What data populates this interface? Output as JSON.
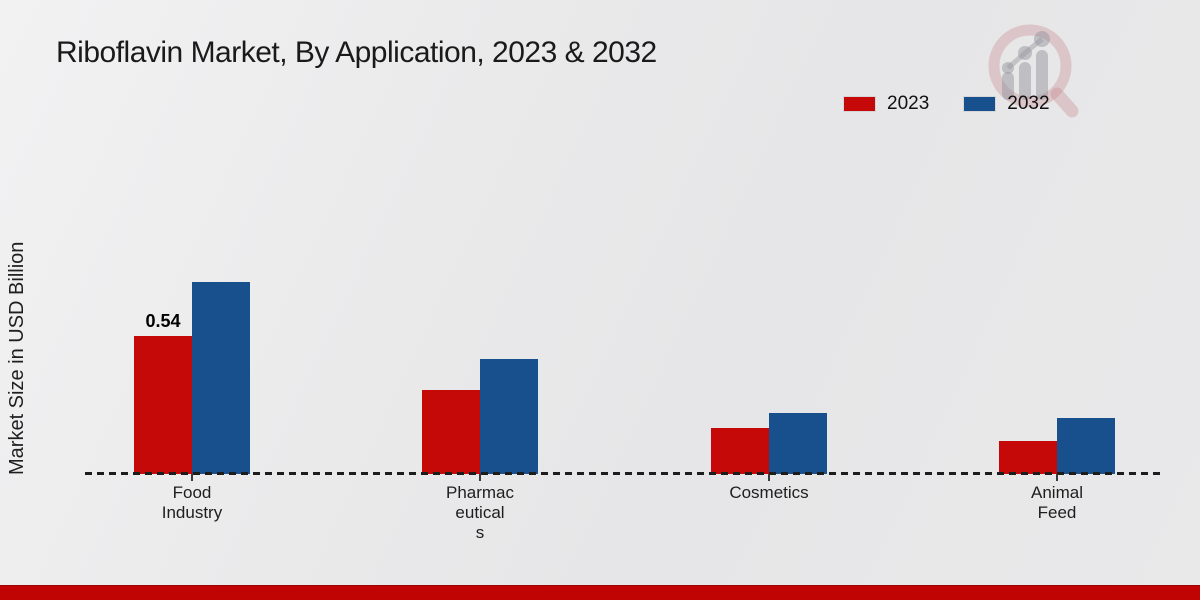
{
  "title": "Riboflavin Market, By Application, 2023 & 2032",
  "ylabel": "Market Size in USD Billion",
  "legend": [
    {
      "label": "2023",
      "color": "#c50808"
    },
    {
      "label": "2032",
      "color": "#17508c"
    }
  ],
  "footer_color": "#c00404",
  "watermark": {
    "name": "magnifier-bar-chart-logo"
  },
  "chart_data": {
    "type": "bar",
    "title": "Riboflavin Market, By Application, 2023 & 2032",
    "xlabel": "",
    "ylabel": "Market Size in USD Billion",
    "categories": [
      "Food Industry",
      "Pharmaceuticals",
      "Cosmetics",
      "Animal Feed"
    ],
    "category_label_lines": [
      [
        "Food",
        "Industry"
      ],
      [
        "Pharmac",
        "eutical",
        "s"
      ],
      [
        "Cosmetics"
      ],
      [
        "Animal",
        "Feed"
      ]
    ],
    "series": [
      {
        "name": "2023",
        "color": "#c50808",
        "values": [
          0.54,
          0.33,
          0.18,
          0.13
        ]
      },
      {
        "name": "2032",
        "color": "#17508c",
        "values": [
          0.75,
          0.45,
          0.24,
          0.22
        ]
      }
    ],
    "data_labels": [
      {
        "series_index": 0,
        "category_index": 0,
        "text": "0.54"
      }
    ],
    "ylim": [
      0,
      0.8
    ],
    "grid": false,
    "y_ticks_visible": false,
    "baseline_style": "dashed",
    "legend_position": "top-right"
  }
}
